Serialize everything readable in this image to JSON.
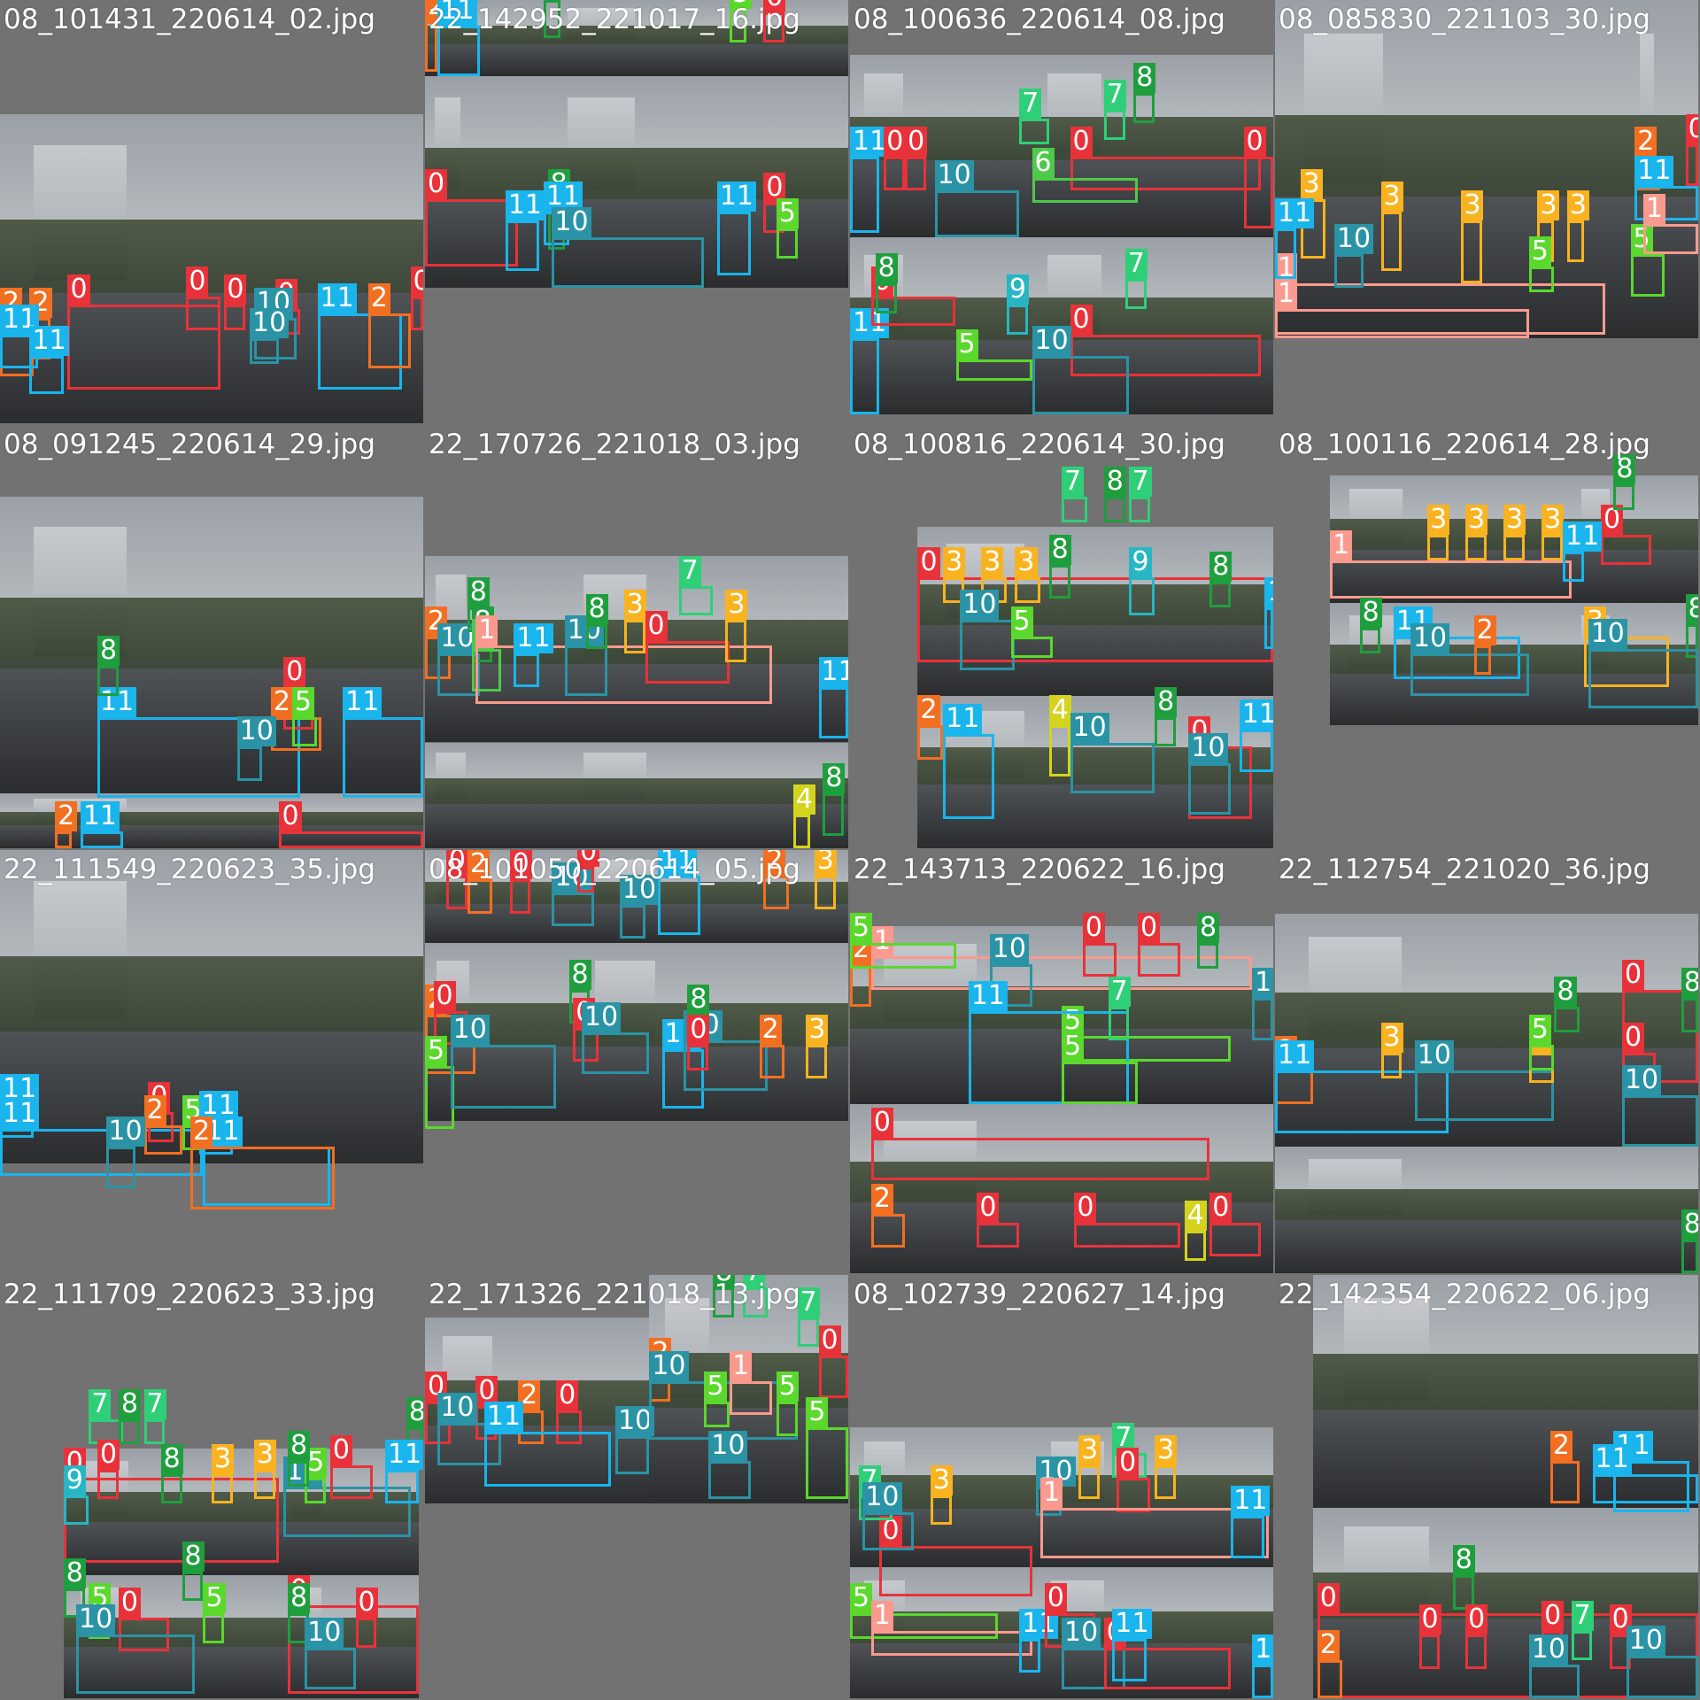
{
  "grid": {
    "background": "#727272",
    "tiles": [
      {
        "filename": "08_101431_220614_02.jpg"
      },
      {
        "filename": "22_142952_221017_16.jpg"
      },
      {
        "filename": "08_100636_220614_08.jpg"
      },
      {
        "filename": "08_085830_221103_30.jpg"
      },
      {
        "filename": "08_091245_220614_29.jpg"
      },
      {
        "filename": "22_170726_221018_03.jpg"
      },
      {
        "filename": "08_100816_220614_30.jpg"
      },
      {
        "filename": "08_100116_220614_28.jpg"
      },
      {
        "filename": "22_111549_220623_35.jpg"
      },
      {
        "filename": "08_101050_220614_05.jpg"
      },
      {
        "filename": "22_143713_220622_16.jpg"
      },
      {
        "filename": "22_112754_221020_36.jpg"
      },
      {
        "filename": "22_111709_220623_33.jpg"
      },
      {
        "filename": "22_171326_221018_13.jpg"
      },
      {
        "filename": "08_102739_220627_14.jpg"
      },
      {
        "filename": "22_142354_220622_06.jpg"
      }
    ]
  },
  "class_colors": {
    "0": "#e8323a",
    "1": "#fa9a8e",
    "2": "#f26f21",
    "3": "#f9b320",
    "4": "#d4d41e",
    "5": "#5ad82c",
    "6": "#4ec94a",
    "7": "#2fcf78",
    "8": "#1f9e3e",
    "9": "#26b6c4",
    "10": "#2a93a5",
    "11": "#19b5ec"
  }
}
